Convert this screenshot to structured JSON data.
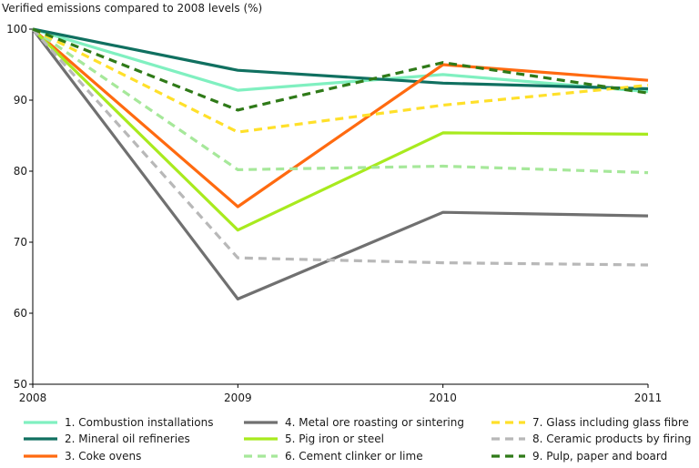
{
  "chart_data": {
    "type": "line",
    "title": "Verified emissions compared to 2008 levels (%)",
    "xlabel": "",
    "ylabel": "",
    "x": [
      "2008",
      "2009",
      "2010",
      "2011"
    ],
    "ylim": [
      50,
      100
    ],
    "yticks": [
      50,
      60,
      70,
      80,
      90,
      100
    ],
    "grid": false,
    "legend_position": "bottom",
    "series": [
      {
        "name": "1. Combustion installations",
        "values": [
          100,
          91.4,
          93.6,
          91.2
        ],
        "color": "#80f0c0",
        "dash": false
      },
      {
        "name": "2. Mineral oil refineries",
        "values": [
          100,
          94.2,
          92.4,
          91.6
        ],
        "color": "#107060",
        "dash": false
      },
      {
        "name": "3. Coke ovens",
        "values": [
          100,
          75.0,
          95.0,
          92.8
        ],
        "color": "#ff6a10",
        "dash": false
      },
      {
        "name": "4. Metal ore roasting or sintering",
        "values": [
          100,
          62.0,
          74.2,
          73.7
        ],
        "color": "#707070",
        "dash": false
      },
      {
        "name": "5. Pig iron or steel",
        "values": [
          100,
          71.7,
          85.4,
          85.2
        ],
        "color": "#a8ea1e",
        "dash": false
      },
      {
        "name": "6. Cement clinker or lime",
        "values": [
          100,
          80.2,
          80.7,
          79.8
        ],
        "color": "#a6e89a",
        "dash": true
      },
      {
        "name": "7. Glass including glass fibre",
        "values": [
          100,
          85.5,
          89.3,
          92.1
        ],
        "color": "#ffe02a",
        "dash": true
      },
      {
        "name": "8. Ceramic products by firing",
        "values": [
          100,
          67.8,
          67.1,
          66.8
        ],
        "color": "#b8b8b8",
        "dash": true
      },
      {
        "name": "9. Pulp, paper and board",
        "values": [
          100,
          88.6,
          95.3,
          91.0
        ],
        "color": "#2f7a18",
        "dash": true
      }
    ]
  }
}
